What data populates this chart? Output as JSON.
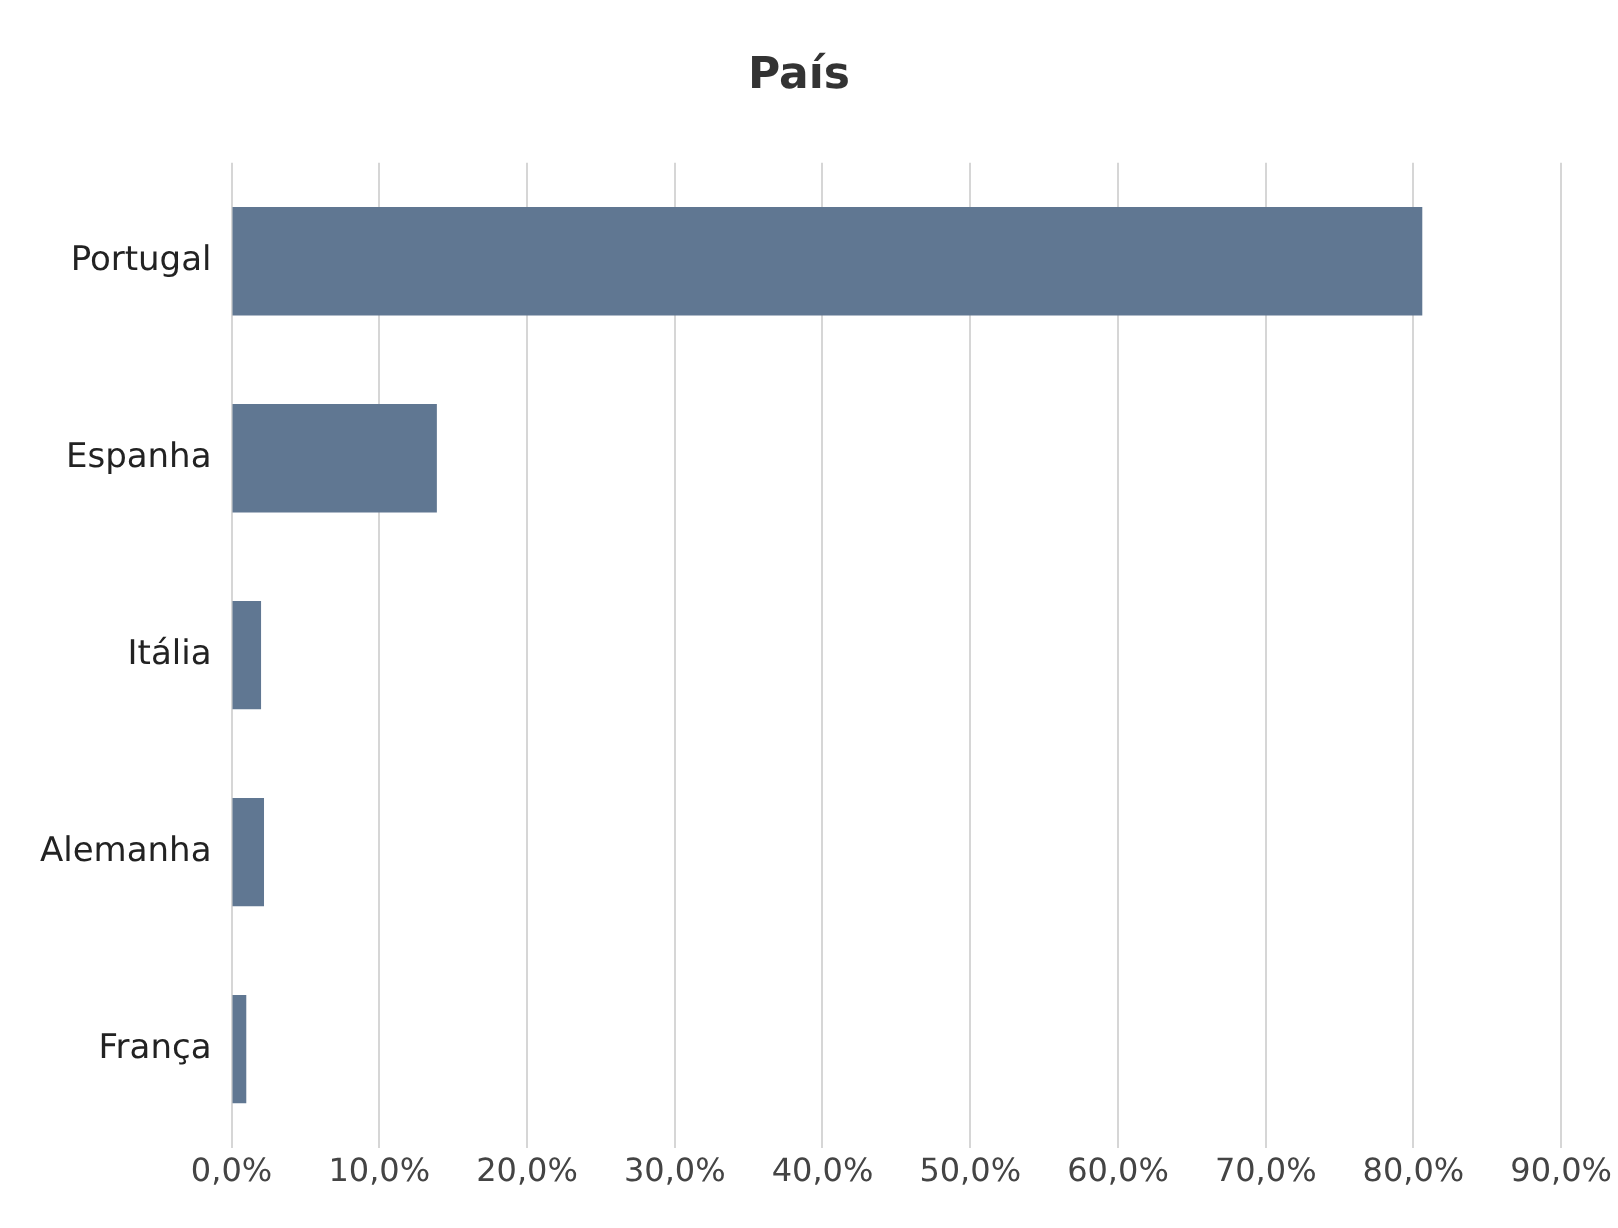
{
  "chart_data": {
    "type": "bar",
    "orientation": "horizontal",
    "title": "País",
    "categories": [
      "Portugal",
      "Espanha",
      "Itália",
      "Alemanha",
      "França"
    ],
    "values": [
      80.6,
      13.9,
      2.0,
      2.2,
      1.0
    ],
    "color": "#607792",
    "xlim": [
      0,
      90
    ],
    "xticks": [
      {
        "value": 0,
        "label": "0,0%"
      },
      {
        "value": 10,
        "label": "10,0%"
      },
      {
        "value": 20,
        "label": "20,0%"
      },
      {
        "value": 30,
        "label": "30,0%"
      },
      {
        "value": 40,
        "label": "40,0%"
      },
      {
        "value": 50,
        "label": "50,0%"
      },
      {
        "value": 60,
        "label": "60,0%"
      },
      {
        "value": 70,
        "label": "70,0%"
      },
      {
        "value": 80,
        "label": "80,0%"
      },
      {
        "value": 90,
        "label": "90,0%"
      }
    ],
    "grid": "x",
    "legend": false
  }
}
